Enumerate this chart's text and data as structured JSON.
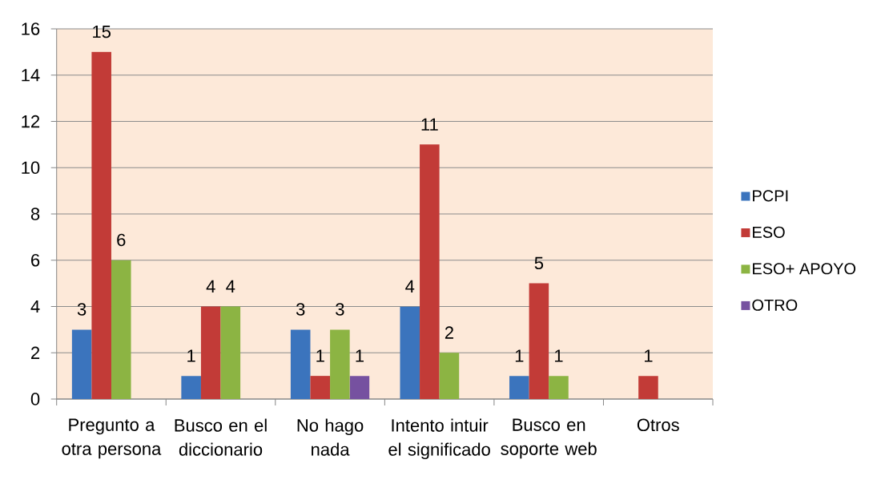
{
  "chart_data": {
    "type": "bar",
    "categories": [
      "Pregunto a otra persona",
      "Busco en el diccionario",
      "No hago nada",
      "Intento intuir el significado",
      "Busco en soporte web",
      "Otros"
    ],
    "series": [
      {
        "name": "PCPI",
        "color": "#3b74bd",
        "values": [
          3,
          1,
          3,
          4,
          1,
          null
        ]
      },
      {
        "name": "ESO",
        "color": "#c23b37",
        "values": [
          15,
          4,
          1,
          11,
          5,
          1
        ]
      },
      {
        "name": "ESO+ APOYO",
        "color": "#8cb443",
        "values": [
          6,
          4,
          3,
          2,
          1,
          null
        ]
      },
      {
        "name": "OTRO",
        "color": "#7651a0",
        "values": [
          null,
          null,
          1,
          null,
          null,
          null
        ]
      }
    ],
    "ylim": [
      0,
      16
    ],
    "yticks": [
      0,
      2,
      4,
      6,
      8,
      10,
      12,
      14,
      16
    ],
    "grid": "y",
    "legend": "right",
    "data_labels": true
  }
}
